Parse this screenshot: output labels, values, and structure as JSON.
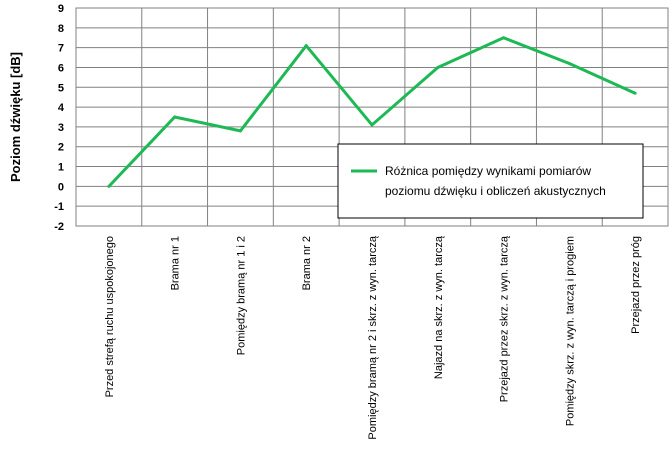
{
  "chart_data": {
    "type": "line",
    "title": "",
    "xlabel": "",
    "ylabel": "Poziom dźwięku [dB]",
    "ylim": [
      -2,
      9
    ],
    "yticks": [
      -2,
      -1,
      0,
      1,
      2,
      3,
      4,
      5,
      6,
      7,
      8,
      9
    ],
    "grid": true,
    "legend_position": "center-right",
    "categories": [
      "Przed strefą ruchu uspokojonego",
      "Brama nr 1",
      "Pomiędzy bramą nr 1 i 2",
      "Brama nr 2",
      "Pomiędzy bramą nr 2 i skrz. z wyn. tarczą",
      "Najazd na skrz. z wyn. tarczą",
      "Przejazd przez skrz. z wyn. tarczą",
      "Pomiędzy skrz. z wyn. tarczą i progiem",
      "Przejazd przez próg"
    ],
    "series": [
      {
        "name": "Różnica pomiędzy wynikami pomiarów poziomu dźwięku i obliczeń akustycznych",
        "legend_lines": [
          "Różnica pomiędzy wynikami pomiarów",
          "poziomu dźwięku i obliczeń akustycznych"
        ],
        "color": "#1db954",
        "values": [
          0.0,
          3.5,
          2.8,
          7.1,
          3.1,
          6.0,
          7.5,
          6.2,
          4.7
        ]
      }
    ]
  }
}
